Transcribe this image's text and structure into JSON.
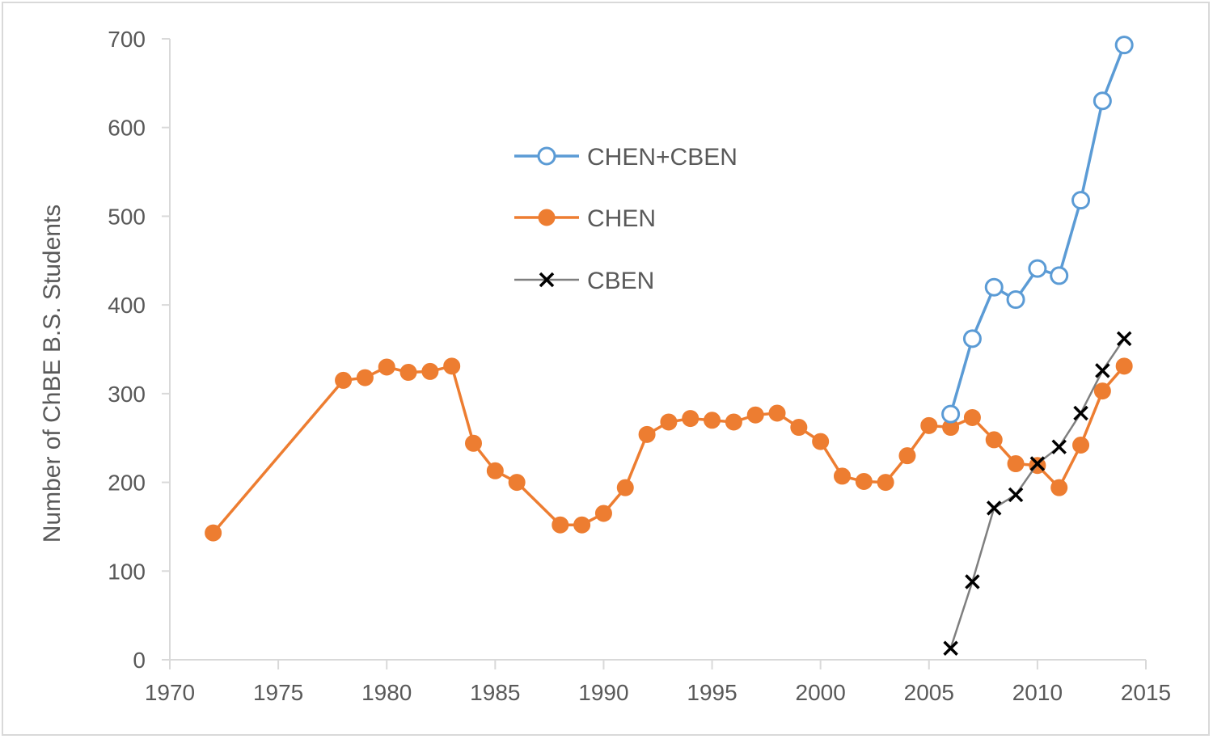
{
  "chart_data": {
    "type": "line",
    "title": "",
    "xlabel": "",
    "ylabel": "Number of ChBE B.S. Students",
    "xlim": [
      1970,
      2015
    ],
    "ylim": [
      0,
      700
    ],
    "x_ticks": [
      1970,
      1975,
      1980,
      1985,
      1990,
      1995,
      2000,
      2005,
      2010,
      2015
    ],
    "y_ticks": [
      0,
      100,
      200,
      300,
      400,
      500,
      600,
      700
    ],
    "grid": false,
    "legend_position": "upper-center",
    "series": [
      {
        "name": "CHEN+CBEN",
        "color": "#5b9bd5",
        "marker": "open-circle",
        "x": [
          2006,
          2007,
          2008,
          2009,
          2010,
          2011,
          2012,
          2013,
          2014
        ],
        "y": [
          277,
          362,
          420,
          406,
          441,
          433,
          518,
          630,
          693
        ]
      },
      {
        "name": "CHEN",
        "color": "#ed7d31",
        "marker": "filled-circle",
        "x": [
          1972,
          1978,
          1979,
          1980,
          1981,
          1982,
          1983,
          1984,
          1985,
          1986,
          1988,
          1989,
          1990,
          1991,
          1992,
          1993,
          1994,
          1995,
          1996,
          1997,
          1998,
          1999,
          2000,
          2001,
          2002,
          2003,
          2004,
          2005,
          2006,
          2007,
          2008,
          2009,
          2010,
          2011,
          2012,
          2013,
          2014
        ],
        "y": [
          143,
          315,
          318,
          330,
          324,
          325,
          331,
          244,
          213,
          200,
          152,
          152,
          165,
          194,
          254,
          268,
          272,
          270,
          268,
          276,
          278,
          262,
          246,
          207,
          201,
          200,
          230,
          264,
          262,
          273,
          248,
          221,
          219,
          194,
          242,
          303,
          331
        ]
      },
      {
        "name": "CBEN",
        "color": "#000000",
        "marker": "x",
        "x": [
          2006,
          2007,
          2008,
          2009,
          2010,
          2011,
          2012,
          2013,
          2014
        ],
        "y": [
          13,
          88,
          171,
          186,
          221,
          240,
          278,
          326,
          362
        ]
      }
    ]
  }
}
